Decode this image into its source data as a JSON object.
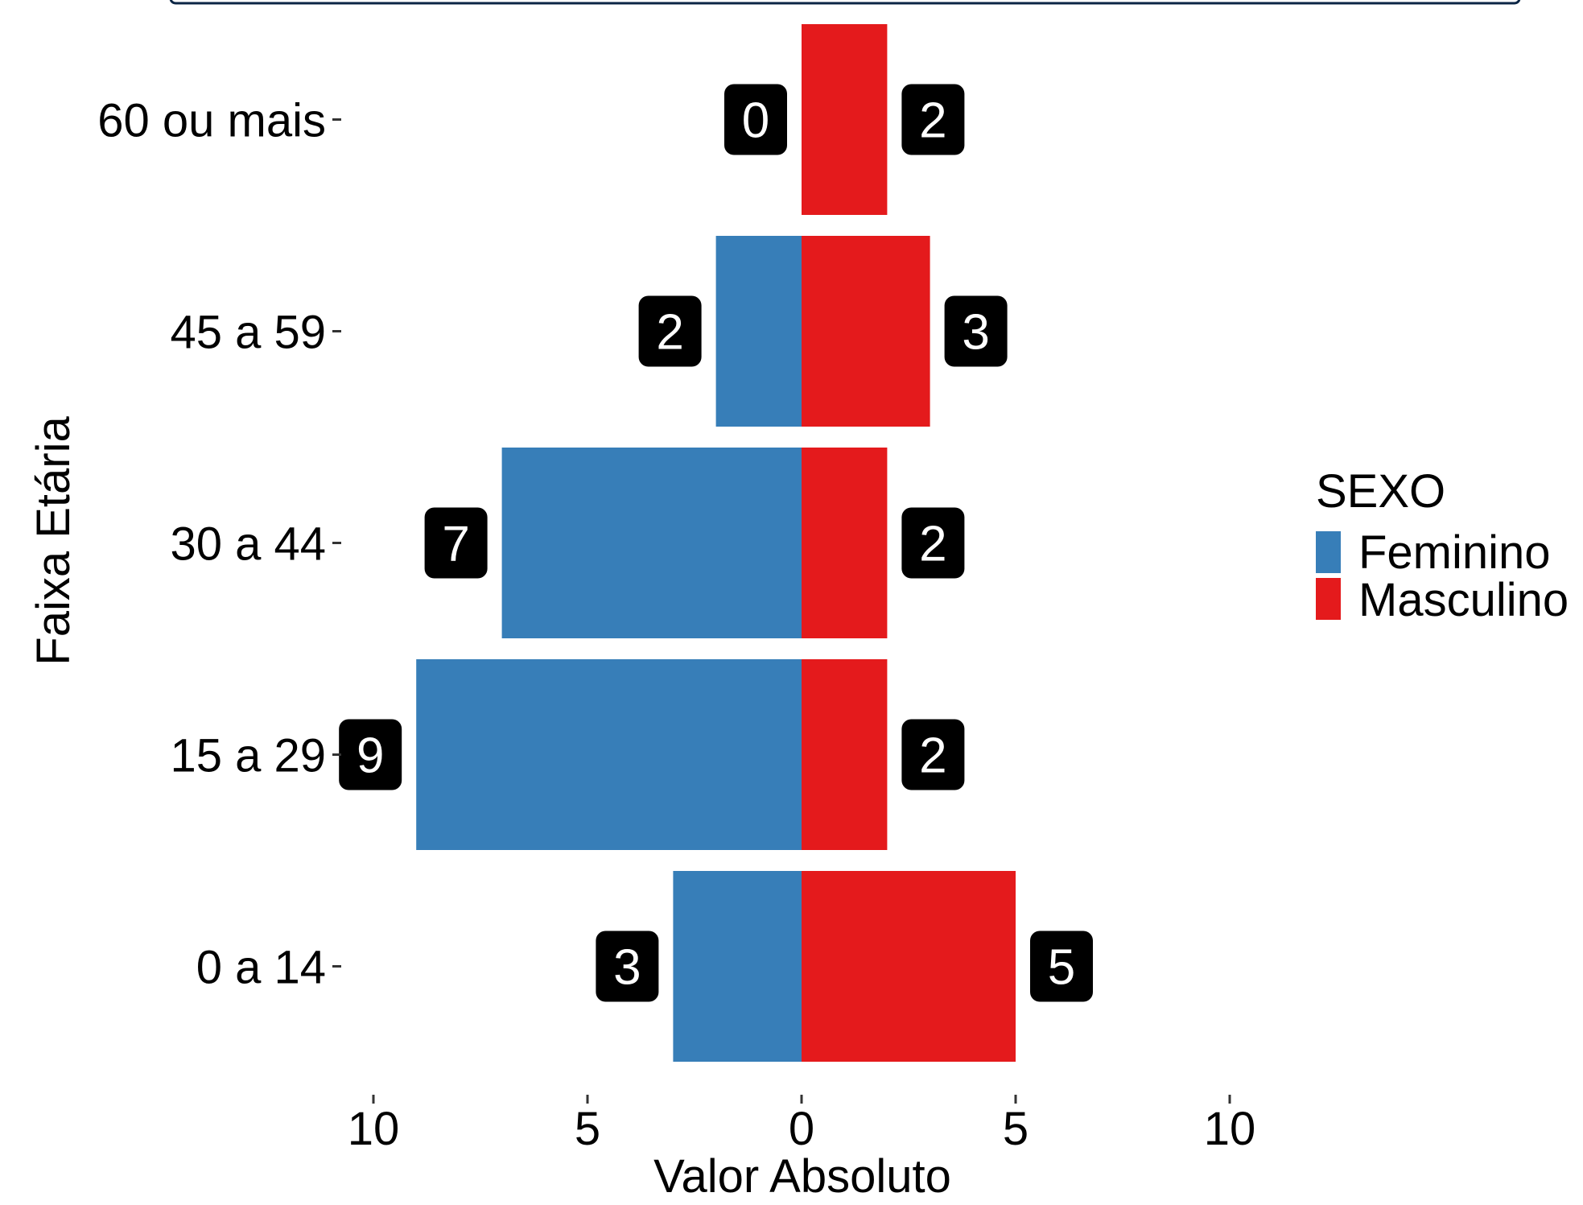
{
  "chart_data": {
    "type": "bar",
    "orientation": "horizontal",
    "subtype": "population-pyramid",
    "categories": [
      "60 ou mais",
      "45 a 59",
      "30 a 44",
      "15 a 29",
      "0 a 14"
    ],
    "series": [
      {
        "name": "Feminino",
        "values": [
          0,
          2,
          7,
          9,
          3
        ],
        "color": "#377EB8",
        "side": "left"
      },
      {
        "name": "Masculino",
        "values": [
          2,
          3,
          2,
          2,
          5
        ],
        "color": "#E41A1C",
        "side": "right"
      }
    ],
    "xlabel": "Valor Absoluto",
    "ylabel": "Faixa Etária",
    "x_ticks": [
      {
        "value": -10,
        "label": "10"
      },
      {
        "value": -5,
        "label": "5"
      },
      {
        "value": 0,
        "label": "0"
      },
      {
        "value": 5,
        "label": "5"
      },
      {
        "value": 10,
        "label": "10"
      }
    ],
    "xlim": [
      -10,
      10
    ],
    "grid": false,
    "data_labels": true,
    "legend": {
      "title": "SEXO",
      "placement": "right",
      "entries": [
        {
          "label": "Feminino",
          "color": "#377EB8"
        },
        {
          "label": "Masculino",
          "color": "#E41A1C"
        }
      ]
    },
    "label_box_color": "#000000",
    "label_text_color": "#ffffff"
  }
}
